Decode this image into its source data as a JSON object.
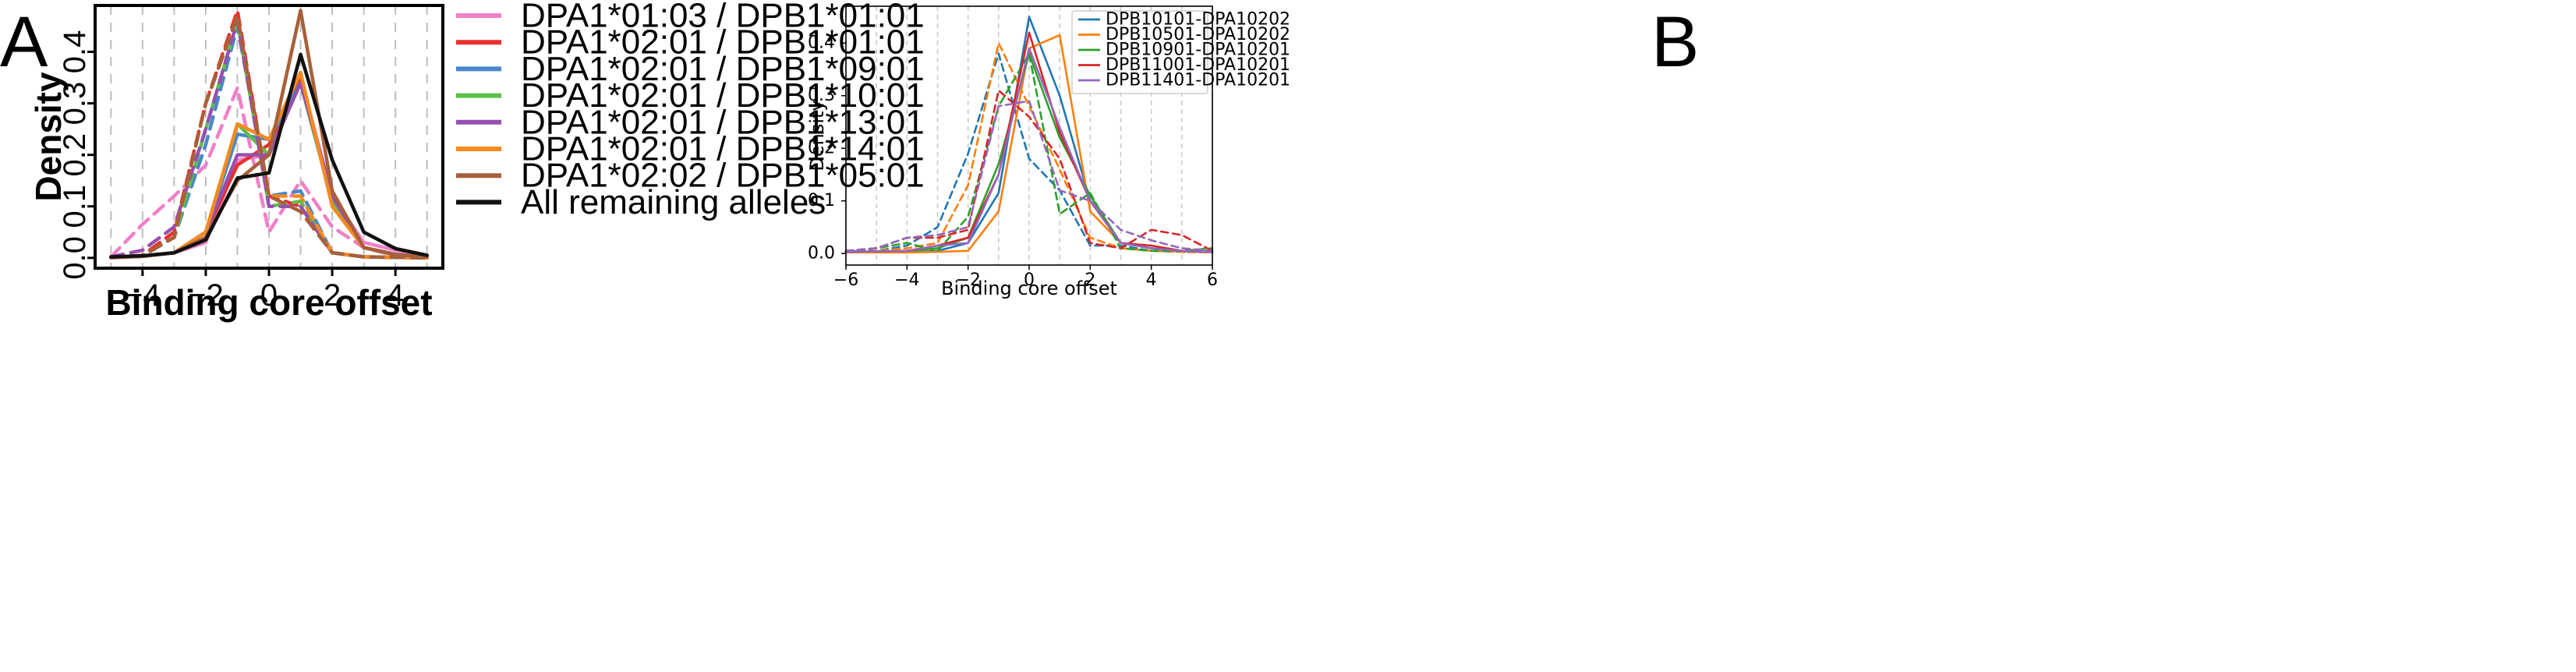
{
  "chart_data": [
    {
      "panel": "A",
      "type": "line",
      "xlabel": "Binding core offset",
      "ylabel": "Density",
      "xlim": [
        -5.5,
        5.5
      ],
      "ylim": [
        -0.02,
        0.49
      ],
      "xticks": [
        -4,
        -2,
        0,
        2,
        4
      ],
      "yticks": [
        0.0,
        0.1,
        0.2,
        0.3,
        0.4
      ],
      "grid": "vertical dashed at integer x",
      "legend_position": "right (outside plot)",
      "x": [
        -5,
        -4,
        -3,
        -2,
        -1,
        0,
        1,
        2,
        3,
        4,
        5
      ],
      "series": [
        {
          "name": "DPA1*01:03 / DPB1*01:01",
          "color": "#f080c8",
          "solid": [
            0,
            0.003,
            0.01,
            0.03,
            0.19,
            0.2,
            0.35,
            0.12,
            0.03,
            0.015,
            0.005
          ],
          "dashed": [
            0.002,
            0.065,
            0.12,
            0.18,
            0.33,
            0.05,
            0.15,
            0.06,
            0.02,
            0.004,
            0.001
          ]
        },
        {
          "name": "DPA1*02:01 / DPB1*01:01",
          "color": "#e8302a",
          "solid": [
            0.001,
            0.003,
            0.01,
            0.05,
            0.18,
            0.22,
            0.35,
            0.11,
            0.02,
            0.006,
            0.002
          ],
          "dashed": [
            0.001,
            0.005,
            0.05,
            0.3,
            0.48,
            0.12,
            0.1,
            0.01,
            0.002,
            0.001,
            0.0
          ]
        },
        {
          "name": "DPA1*02:01 / DPB1*09:01",
          "color": "#4a86c8",
          "solid": [
            0.001,
            0.003,
            0.01,
            0.05,
            0.24,
            0.23,
            0.34,
            0.11,
            0.02,
            0.007,
            0.002
          ],
          "dashed": [
            0.001,
            0.004,
            0.04,
            0.22,
            0.45,
            0.12,
            0.13,
            0.01,
            0.002,
            0.001,
            0.0
          ]
        },
        {
          "name": "DPA1*02:01 / DPB1*10:01",
          "color": "#5cc04a",
          "solid": [
            0.001,
            0.003,
            0.01,
            0.05,
            0.26,
            0.2,
            0.34,
            0.11,
            0.02,
            0.006,
            0.002
          ],
          "dashed": [
            0.001,
            0.004,
            0.04,
            0.25,
            0.46,
            0.1,
            0.11,
            0.01,
            0.002,
            0.001,
            0.0
          ]
        },
        {
          "name": "DPA1*02:01 / DPB1*13:01",
          "color": "#9650b0",
          "solid": [
            0.001,
            0.003,
            0.01,
            0.05,
            0.2,
            0.2,
            0.34,
            0.12,
            0.02,
            0.007,
            0.002
          ],
          "dashed": [
            0.002,
            0.015,
            0.06,
            0.25,
            0.46,
            0.1,
            0.1,
            0.01,
            0.002,
            0.001,
            0.0
          ]
        },
        {
          "name": "DPA1*02:01 / DPB1*14:01",
          "color": "#f58a20",
          "solid": [
            0.001,
            0.003,
            0.01,
            0.05,
            0.26,
            0.23,
            0.36,
            0.1,
            0.02,
            0.006,
            0.002
          ],
          "dashed": [
            0.001,
            0.004,
            0.04,
            0.3,
            0.47,
            0.12,
            0.12,
            0.01,
            0.002,
            0.001,
            0.0
          ]
        },
        {
          "name": "DPA1*02:02 / DPB1*05:01",
          "color": "#a8603a",
          "solid": [
            0.001,
            0.003,
            0.01,
            0.04,
            0.15,
            0.2,
            0.48,
            0.13,
            0.02,
            0.006,
            0.002
          ],
          "dashed": [
            0.001,
            0.004,
            0.04,
            0.3,
            0.47,
            0.12,
            0.09,
            0.01,
            0.002,
            0.001,
            0.0
          ]
        },
        {
          "name": "All remaining alleles",
          "color": "#111111",
          "solid": [
            0.002,
            0.004,
            0.01,
            0.035,
            0.155,
            0.165,
            0.395,
            0.19,
            0.05,
            0.018,
            0.005
          ],
          "dashed": null
        }
      ]
    },
    {
      "panel": "B",
      "type": "line",
      "xlabel": "Binding core offset",
      "ylabel": "Density",
      "xlim": [
        -6,
        6
      ],
      "ylim": [
        -0.022,
        0.47
      ],
      "xticks": [
        -6,
        -4,
        -2,
        0,
        2,
        4,
        6
      ],
      "yticks": [
        0.0,
        0.1,
        0.2,
        0.3,
        0.4
      ],
      "grid": "vertical dashed at integer x",
      "legend_position": "top-right",
      "x": [
        -6,
        -5,
        -4,
        -3,
        -2,
        -1,
        0,
        1,
        2,
        3,
        4,
        5,
        6
      ],
      "series": [
        {
          "name": "DPB10101-DPA10202",
          "color": "#1f77b4",
          "solid": [
            0.005,
            0.003,
            0.002,
            0.005,
            0.02,
            0.115,
            0.45,
            0.3,
            0.1,
            0.02,
            0.01,
            0.005,
            0.003
          ],
          "dashed": [
            0.005,
            0.005,
            0.015,
            0.05,
            0.19,
            0.38,
            0.18,
            0.12,
            0.015,
            0.015,
            0.005,
            0.003,
            0.002
          ]
        },
        {
          "name": "DPB10501-DPA10202",
          "color": "#ff7f0e",
          "solid": [
            0.002,
            0.002,
            0.002,
            0.003,
            0.005,
            0.08,
            0.39,
            0.415,
            0.08,
            0.02,
            0.01,
            0.005,
            0.003
          ],
          "dashed": [
            0.002,
            0.005,
            0.01,
            0.02,
            0.13,
            0.4,
            0.28,
            0.16,
            0.03,
            0.01,
            0.005,
            0.003,
            0.002
          ]
        },
        {
          "name": "DPB10901-DPA10201",
          "color": "#2ca02c",
          "solid": [
            0.003,
            0.004,
            0.005,
            0.01,
            0.03,
            0.17,
            0.38,
            0.22,
            0.11,
            0.02,
            0.01,
            0.005,
            0.003
          ],
          "dashed": [
            0.005,
            0.01,
            0.02,
            0.005,
            0.07,
            0.28,
            0.38,
            0.075,
            0.115,
            0.01,
            0.005,
            0.005,
            0.01
          ]
        },
        {
          "name": "DPB11001-DPA10201",
          "color": "#d62728",
          "solid": [
            0.003,
            0.004,
            0.005,
            0.015,
            0.03,
            0.15,
            0.42,
            0.23,
            0.1,
            0.02,
            0.015,
            0.005,
            0.003
          ],
          "dashed": [
            0.005,
            0.01,
            0.03,
            0.03,
            0.045,
            0.31,
            0.26,
            0.18,
            0.02,
            0.01,
            0.045,
            0.035,
            0.005
          ]
        },
        {
          "name": "DPB11401-DPA10201",
          "color": "#9467bd",
          "solid": [
            0.003,
            0.004,
            0.005,
            0.015,
            0.02,
            0.15,
            0.39,
            0.24,
            0.1,
            0.02,
            0.01,
            0.005,
            0.003
          ],
          "dashed": [
            0.005,
            0.01,
            0.03,
            0.035,
            0.05,
            0.28,
            0.29,
            0.12,
            0.1,
            0.045,
            0.025,
            0.01,
            0.005
          ]
        }
      ]
    }
  ],
  "panels": {
    "A": {
      "letter": "A"
    },
    "B": {
      "letter": "B"
    }
  }
}
